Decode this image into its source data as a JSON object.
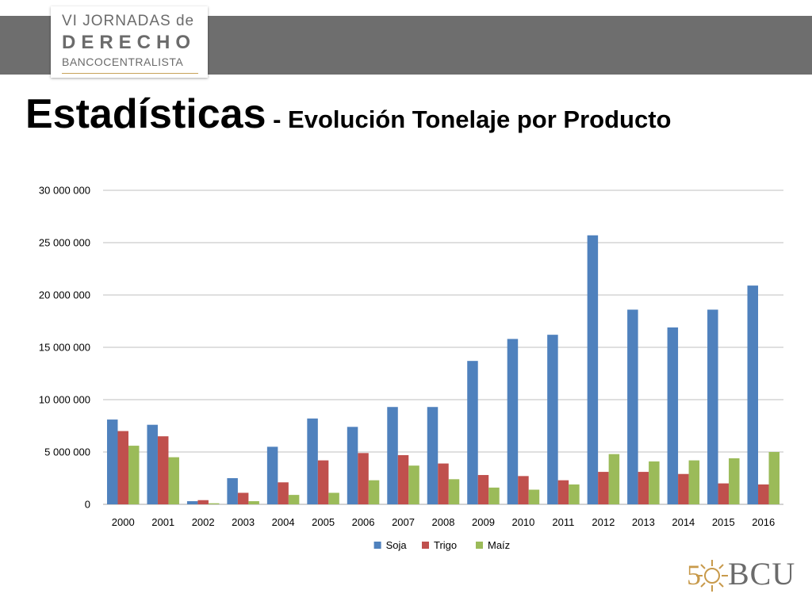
{
  "header": {
    "logo": {
      "line1": "VI JORNADAS de",
      "line2": "DERECHO",
      "line3": "BANCOCENTRALISTA"
    },
    "title_main": "Estadísticas",
    "title_sub": " - Evolución Tonelaje por Producto"
  },
  "footer_logo": {
    "number": "5",
    "text": "BCU"
  },
  "colors": {
    "band": "#6e6e6e",
    "soja": "#4f81bd",
    "trigo": "#c0504d",
    "maiz": "#9bbb59",
    "grid": "#bfbfbf",
    "logo_gold": "#c89a4b"
  },
  "chart_data": {
    "type": "bar",
    "title": "",
    "xlabel": "",
    "ylabel": "",
    "ylim": [
      0,
      30000000
    ],
    "yticks": [
      0,
      5000000,
      10000000,
      15000000,
      20000000,
      25000000,
      30000000
    ],
    "ytick_labels": [
      "0",
      "5 000 000",
      "10 000 000",
      "15 000 000",
      "20 000 000",
      "25 000 000",
      "30 000 000"
    ],
    "grid": true,
    "legend_position": "bottom",
    "categories": [
      "2000",
      "2001",
      "2002",
      "2003",
      "2004",
      "2005",
      "2006",
      "2007",
      "2008",
      "2009",
      "2010",
      "2011",
      "2012",
      "2013",
      "2014",
      "2015",
      "2016"
    ],
    "series": [
      {
        "name": "Soja",
        "color": "#4f81bd",
        "values": [
          8100000,
          7600000,
          300000,
          2500000,
          5500000,
          8200000,
          7400000,
          9300000,
          9300000,
          13700000,
          15800000,
          16200000,
          25700000,
          18600000,
          16900000,
          18600000,
          20900000
        ]
      },
      {
        "name": "Trigo",
        "color": "#c0504d",
        "values": [
          7000000,
          6500000,
          400000,
          1100000,
          2100000,
          4200000,
          4900000,
          4700000,
          3900000,
          2800000,
          2700000,
          2300000,
          3100000,
          3100000,
          2900000,
          2000000,
          1900000
        ]
      },
      {
        "name": "Maíz",
        "color": "#9bbb59",
        "values": [
          5600000,
          4500000,
          100000,
          300000,
          900000,
          1100000,
          2300000,
          3700000,
          2400000,
          1600000,
          1400000,
          1900000,
          4800000,
          4100000,
          4200000,
          4400000,
          5000000
        ]
      }
    ]
  }
}
